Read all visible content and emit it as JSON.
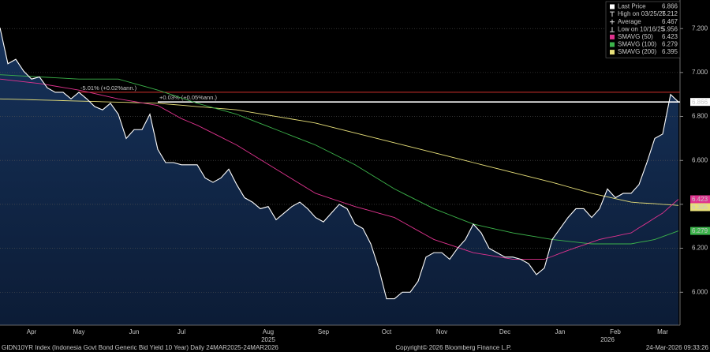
{
  "chart_data": {
    "type": "line",
    "categories": [
      null,
      null,
      null,
      null,
      "Apr",
      null,
      null,
      null,
      null,
      null,
      "May",
      null,
      null,
      null,
      null,
      null,
      null,
      "Jun",
      null,
      null,
      null,
      null,
      null,
      "Jul",
      null,
      null,
      null,
      null,
      null,
      null,
      null,
      null,
      null,
      null,
      "Aug",
      null,
      null,
      null,
      null,
      null,
      null,
      "Sep",
      null,
      null,
      null,
      null,
      null,
      null,
      null,
      "Oct",
      null,
      null,
      null,
      null,
      null,
      null,
      "Nov",
      null,
      null,
      null,
      null,
      null,
      null,
      null,
      "Dec",
      null,
      null,
      null,
      null,
      null,
      null,
      "Jan",
      null,
      null,
      null,
      null,
      null,
      null,
      "Feb",
      null,
      null,
      null,
      null,
      null,
      "Mar",
      null,
      null
    ],
    "year_labels": [
      null,
      null,
      null,
      null,
      null,
      null,
      null,
      null,
      null,
      null,
      null,
      null,
      null,
      null,
      null,
      null,
      null,
      null,
      null,
      null,
      null,
      null,
      null,
      null,
      null,
      null,
      null,
      null,
      null,
      null,
      null,
      null,
      null,
      null,
      "2025",
      null,
      null,
      null,
      null,
      null,
      null,
      null,
      null,
      null,
      null,
      null,
      null,
      null,
      null,
      null,
      null,
      null,
      null,
      null,
      null,
      null,
      null,
      null,
      null,
      null,
      null,
      null,
      null,
      null,
      null,
      null,
      null,
      null,
      null,
      null,
      null,
      null,
      null,
      null,
      null,
      null,
      null,
      "2026",
      null,
      null,
      null,
      null,
      null,
      null,
      null,
      null,
      null
    ],
    "series": [
      {
        "name": "Last Price",
        "color": "#ffffff",
        "area": true,
        "values": [
          7.204,
          7.04,
          7.06,
          7.006,
          6.97,
          6.98,
          6.93,
          6.91,
          6.91,
          6.88,
          6.91,
          6.88,
          6.845,
          6.83,
          6.86,
          6.81,
          6.7,
          6.74,
          6.74,
          6.81,
          6.65,
          6.59,
          6.59,
          6.58,
          6.58,
          6.58,
          6.52,
          6.5,
          6.52,
          6.56,
          6.49,
          6.43,
          6.41,
          6.38,
          6.39,
          6.33,
          6.36,
          6.39,
          6.41,
          6.38,
          6.34,
          6.32,
          6.36,
          6.4,
          6.38,
          6.31,
          6.29,
          6.22,
          6.11,
          5.97,
          5.97,
          6.0,
          6.0,
          6.05,
          6.16,
          6.18,
          6.18,
          6.15,
          6.2,
          6.24,
          6.31,
          6.27,
          6.2,
          6.18,
          6.16,
          6.16,
          6.15,
          6.13,
          6.08,
          6.11,
          6.24,
          6.29,
          6.34,
          6.38,
          6.38,
          6.34,
          6.38,
          6.47,
          6.43,
          6.45,
          6.45,
          6.49,
          6.59,
          6.7,
          6.72,
          6.9,
          6.866
        ]
      },
      {
        "name": "SMAVG (50)",
        "color": "#e0338f",
        "values": [
          6.97,
          6.966,
          6.962,
          6.958,
          6.954,
          6.95,
          6.944,
          6.938,
          6.932,
          6.926,
          6.92,
          6.912,
          6.904,
          6.896,
          6.888,
          6.88,
          6.874,
          6.868,
          6.862,
          6.856,
          6.85,
          6.83,
          6.81,
          6.79,
          6.775,
          6.76,
          6.742,
          6.724,
          6.706,
          6.688,
          6.67,
          6.648,
          6.626,
          6.604,
          6.582,
          6.56,
          6.538,
          6.516,
          6.494,
          6.472,
          6.45,
          6.438,
          6.426,
          6.414,
          6.402,
          6.39,
          6.38,
          6.37,
          6.36,
          6.35,
          6.34,
          6.32,
          6.3,
          6.28,
          6.26,
          6.24,
          6.228,
          6.216,
          6.204,
          6.192,
          6.18,
          6.174,
          6.168,
          6.162,
          6.156,
          6.15,
          6.15,
          6.15,
          6.15,
          6.15,
          6.163,
          6.177,
          6.19,
          6.203,
          6.215,
          6.228,
          6.24,
          6.248,
          6.255,
          6.263,
          6.27,
          6.293,
          6.315,
          6.338,
          6.36,
          6.392,
          6.423
        ]
      },
      {
        "name": "SMAVG (100)",
        "color": "#3cb44b",
        "values": [
          6.99,
          6.988,
          6.986,
          6.984,
          6.982,
          6.98,
          6.978,
          6.976,
          6.974,
          6.972,
          6.97,
          6.97,
          6.97,
          6.97,
          6.97,
          6.97,
          6.96,
          6.95,
          6.94,
          6.93,
          6.92,
          6.908,
          6.896,
          6.884,
          6.872,
          6.86,
          6.85,
          6.84,
          6.83,
          6.82,
          6.81,
          6.796,
          6.782,
          6.768,
          6.754,
          6.74,
          6.726,
          6.712,
          6.698,
          6.684,
          6.67,
          6.652,
          6.634,
          6.616,
          6.598,
          6.58,
          6.558,
          6.536,
          6.514,
          6.492,
          6.47,
          6.452,
          6.434,
          6.416,
          6.398,
          6.38,
          6.366,
          6.352,
          6.338,
          6.324,
          6.31,
          6.302,
          6.294,
          6.286,
          6.278,
          6.27,
          6.264,
          6.258,
          6.252,
          6.246,
          6.24,
          6.236,
          6.232,
          6.228,
          6.224,
          6.22,
          6.22,
          6.22,
          6.22,
          6.22,
          6.22,
          6.227,
          6.233,
          6.24,
          6.253,
          6.266,
          6.279
        ]
      },
      {
        "name": "SMAVG (200)",
        "color": "#e8e07a",
        "values": [
          6.88,
          6.879,
          6.878,
          6.877,
          6.876,
          6.875,
          6.874,
          6.873,
          6.872,
          6.871,
          6.87,
          6.869,
          6.868,
          6.867,
          6.866,
          6.865,
          6.864,
          6.863,
          6.862,
          6.861,
          6.86,
          6.857,
          6.854,
          6.851,
          6.848,
          6.845,
          6.842,
          6.839,
          6.836,
          6.833,
          6.83,
          6.824,
          6.818,
          6.812,
          6.806,
          6.8,
          6.794,
          6.788,
          6.782,
          6.776,
          6.77,
          6.761,
          6.752,
          6.743,
          6.734,
          6.725,
          6.716,
          6.707,
          6.698,
          6.689,
          6.68,
          6.671,
          6.662,
          6.653,
          6.644,
          6.635,
          6.626,
          6.617,
          6.608,
          6.599,
          6.59,
          6.581,
          6.572,
          6.563,
          6.554,
          6.545,
          6.536,
          6.527,
          6.518,
          6.509,
          6.5,
          6.49,
          6.48,
          6.47,
          6.46,
          6.45,
          6.442,
          6.434,
          6.426,
          6.418,
          6.41,
          6.407,
          6.405,
          6.403,
          6.4,
          6.398,
          6.395
        ]
      }
    ],
    "stats": [
      {
        "label": "High on 03/25/25",
        "value": 7.212
      },
      {
        "label": "Average",
        "value": 6.467
      },
      {
        "label": "Low on 10/16/25",
        "value": 5.956
      }
    ],
    "annotations": [
      {
        "text": "-5.01% (+0.02%ann.)",
        "value": 6.91,
        "color": "#d0312d"
      },
      {
        "text": "+0.03% (+0.05%ann.)",
        "value": 6.866,
        "color": "#ffffff"
      }
    ],
    "ylim": [
      5.85,
      7.33
    ],
    "yticks": [
      {
        "value": 6.0,
        "label": "6.000"
      },
      {
        "value": 6.2,
        "label": "6.200"
      },
      {
        "value": 6.4,
        "label": "6.400"
      },
      {
        "value": 6.6,
        "label": "6.600"
      },
      {
        "value": 6.8,
        "label": "6.800"
      },
      {
        "value": 7.0,
        "label": "7.000"
      },
      {
        "value": 7.2,
        "label": "7.200"
      }
    ],
    "grid": true,
    "legend": "upper right",
    "footer": {
      "left": "GIDN10YR Index (Indonesia Govt Bond Generic Bid Yield 10 Year) Daily 24MAR2025-24MAR2026",
      "center": "Copyright© 2026 Bloomberg Finance L.P.",
      "right": "24-Mar-2026 09:33:26"
    }
  }
}
